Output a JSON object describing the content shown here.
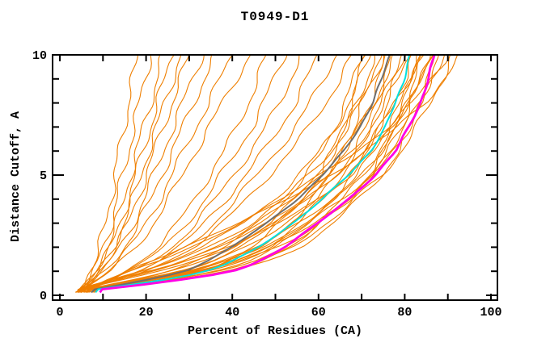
{
  "chart_data": {
    "type": "line",
    "title": "T0949-D1",
    "xlabel": "Percent of Residues (CA)",
    "ylabel": "Distance Cutoff, A",
    "xlim": [
      0,
      100
    ],
    "ylim": [
      0,
      10
    ],
    "grid": false,
    "legend": "none",
    "x_major_ticks": [
      0,
      20,
      40,
      60,
      80,
      100
    ],
    "x_minor_ticks": [
      10,
      30,
      50,
      70,
      90
    ],
    "y_major_ticks": [
      0,
      5,
      10
    ],
    "y_minor_ticks": [
      1,
      2,
      3,
      4,
      6,
      7,
      8,
      9
    ],
    "axis_color": "#000000",
    "line_groups": {
      "model": {
        "color": "#EF7F00",
        "width": 1.1
      },
      "reference": {
        "color": "#6E6E6E",
        "width": 2
      },
      "highlight-cyan": {
        "color": "#00E0E0",
        "width": 2
      },
      "highlight-magenta": {
        "color": "#FF00E6",
        "width": 2.8
      }
    },
    "cutoffs": [
      0.25,
      0.5,
      0.75,
      1,
      1.25,
      1.5,
      2,
      2.5,
      3,
      4,
      5,
      6,
      7,
      8,
      9,
      10
    ],
    "series": [
      {
        "name": "model-01",
        "group": "model",
        "percents": [
          5,
          5.9,
          6.6,
          7.2,
          7.7,
          8.3,
          9.2,
          9.9,
          10.6,
          11.8,
          12.8,
          13.8,
          14.9,
          15.9,
          17,
          18
        ]
      },
      {
        "name": "model-02",
        "group": "model",
        "percents": [
          5,
          6.1,
          6.9,
          7.7,
          8.4,
          9,
          10.1,
          11.1,
          11.9,
          13.3,
          14.6,
          15.9,
          17.2,
          18.4,
          19.7,
          21
        ]
      },
      {
        "name": "model-03",
        "group": "model",
        "percents": [
          5,
          6.3,
          7.3,
          8.2,
          9,
          9.8,
          11.1,
          12.2,
          13.2,
          14.9,
          16.4,
          17.9,
          19.4,
          21,
          22.5,
          24
        ]
      },
      {
        "name": "model-04",
        "group": "model",
        "percents": [
          5,
          6.5,
          7.5,
          8.6,
          9.4,
          10.3,
          11.7,
          13,
          14,
          15.9,
          17.6,
          19.3,
          21,
          22.6,
          24.3,
          26
        ]
      },
      {
        "name": "model-05",
        "group": "model",
        "percents": [
          5,
          6.6,
          7.8,
          8.9,
          9.8,
          10.8,
          12.4,
          13.7,
          14.9,
          17,
          18.8,
          20.6,
          22.5,
          24.3,
          26.2,
          28
        ]
      },
      {
        "name": "model-06",
        "group": "model",
        "percents": [
          5,
          6.8,
          8,
          9.3,
          10.3,
          11.3,
          13,
          14.5,
          15.8,
          18,
          20,
          22,
          24,
          26,
          28,
          30
        ]
      },
      {
        "name": "model-07",
        "group": "model",
        "percents": [
          5,
          7,
          8.4,
          9.8,
          10.9,
          12,
          14,
          15.6,
          17,
          19.6,
          21.8,
          24,
          26.3,
          28.5,
          30.8,
          33
        ]
      },
      {
        "name": "model-08",
        "group": "model",
        "percents": [
          5,
          7.2,
          8.7,
          10.3,
          11.5,
          12.8,
          14.9,
          16.8,
          18.3,
          21.1,
          23.6,
          26.1,
          28.6,
          31,
          33.5,
          36
        ]
      },
      {
        "name": "model-09",
        "group": "model",
        "percents": [
          5,
          7.5,
          9.2,
          11,
          12.4,
          13.8,
          16.2,
          18.3,
          20.1,
          23.2,
          26,
          28.8,
          31.6,
          34.4,
          37.2,
          40
        ]
      },
      {
        "name": "model-10",
        "group": "model",
        "percents": [
          5,
          7.7,
          9.7,
          11.6,
          13.2,
          14.8,
          17.5,
          19.8,
          21.8,
          25.3,
          28.4,
          31.5,
          34.6,
          37.8,
          40.9,
          44
        ]
      },
      {
        "name": "model-11",
        "group": "model",
        "percents": [
          5.4,
          9.3,
          12.3,
          14.9,
          17,
          19.2,
          22.6,
          25.2,
          27.4,
          31.2,
          34.7,
          38.1,
          41.1,
          43.7,
          45.9,
          48
        ]
      },
      {
        "name": "model-12",
        "group": "model",
        "percents": [
          5.5,
          9.7,
          13,
          15.8,
          18.2,
          20.5,
          24.3,
          27.1,
          29.4,
          33.7,
          37.4,
          41.2,
          44.5,
          47.3,
          49.7,
          52
        ]
      },
      {
        "name": "model-13",
        "group": "model",
        "percents": [
          5.5,
          10.1,
          13.7,
          16.7,
          19.3,
          21.8,
          25.9,
          29,
          31.5,
          36.1,
          40.2,
          44.3,
          47.8,
          50.9,
          53.5,
          56
        ]
      },
      {
        "name": "model-14",
        "group": "model",
        "percents": [
          5.6,
          10.5,
          14.4,
          17.7,
          20.4,
          23.2,
          27.6,
          30.9,
          33.6,
          38.6,
          43,
          47.4,
          51.2,
          54.5,
          57.3,
          60
        ]
      },
      {
        "name": "model-15",
        "group": "model",
        "percents": [
          5.6,
          10.9,
          15,
          18.6,
          21.5,
          24.5,
          29.2,
          32.7,
          35.7,
          41,
          45.7,
          50.4,
          54.6,
          58.1,
          61.1,
          64
        ]
      },
      {
        "name": "model-16",
        "group": "model",
        "percents": [
          5.6,
          11.3,
          15.7,
          19.5,
          22.6,
          25.8,
          30.8,
          34.6,
          37.8,
          43.4,
          48.5,
          53.5,
          57.9,
          61.7,
          64.9,
          68
        ]
      },
      {
        "name": "model-17",
        "group": "model",
        "percents": [
          5.6,
          12.6,
          19.6,
          25.2,
          29.4,
          32.9,
          38.5,
          42.7,
          46.2,
          52.5,
          57.4,
          60.9,
          63.7,
          66.2,
          68.3,
          70
        ]
      },
      {
        "name": "model-18",
        "group": "model",
        "percents": [
          5.8,
          13.1,
          20.4,
          26.3,
          30.7,
          34.3,
          40.2,
          44.5,
          48.2,
          54.8,
          59.9,
          63.5,
          66.4,
          69,
          71.2,
          73
        ]
      },
      {
        "name": "model-19",
        "group": "model",
        "percents": [
          6.1,
          13.7,
          21.3,
          27.4,
          31.9,
          35.7,
          41.8,
          46.4,
          50.2,
          57,
          62.3,
          66.1,
          69.2,
          71.8,
          74.1,
          76
        ]
      },
      {
        "name": "model-20",
        "group": "model",
        "percents": [
          6.3,
          14.2,
          22.1,
          28.4,
          33.2,
          37.1,
          43.5,
          48.2,
          52.1,
          59.3,
          64.8,
          68.7,
          71.9,
          74.7,
          77,
          79
        ]
      },
      {
        "name": "model-21",
        "group": "model",
        "percents": [
          6.6,
          14.8,
          23,
          29.5,
          34.4,
          38.5,
          45.1,
          50,
          54.1,
          61.5,
          67.2,
          71.3,
          74.6,
          77.5,
          80,
          82
        ]
      },
      {
        "name": "model-22",
        "group": "model",
        "percents": [
          6.7,
          15.1,
          23.5,
          30.2,
          35.3,
          39.5,
          46.2,
          51.2,
          55.4,
          63,
          68.9,
          73.1,
          76.4,
          79.4,
          81.9,
          84
        ]
      },
      {
        "name": "model-23",
        "group": "model",
        "percents": [
          6.8,
          15.4,
          23.9,
          30.8,
          35.9,
          40.2,
          47,
          52.2,
          56.4,
          64.1,
          70.1,
          74.4,
          77.8,
          80.8,
          83.4,
          85.5
        ]
      },
      {
        "name": "model-24",
        "group": "model",
        "percents": [
          7,
          15.8,
          24.5,
          31.5,
          36.8,
          41.1,
          48.1,
          53.4,
          57.8,
          65.6,
          71.8,
          76.1,
          79.6,
          82.7,
          85.3,
          87.5
        ]
      },
      {
        "name": "model-25",
        "group": "model",
        "percents": [
          7.1,
          16,
          24.9,
          32,
          37.4,
          41.8,
          49,
          54.3,
          58.7,
          66.8,
          73,
          77.4,
          81,
          84.1,
          86.8,
          89
        ]
      },
      {
        "name": "model-26",
        "group": "model",
        "percents": [
          7.3,
          16.4,
          25.5,
          32.8,
          38.2,
          42.8,
          50.1,
          55.5,
          60.1,
          68.3,
          74.6,
          79.2,
          82.8,
          86,
          88.7,
          91
        ]
      },
      {
        "name": "model-27",
        "group": "model",
        "percents": [
          7.1,
          17,
          25.6,
          32,
          36.2,
          39.8,
          44.7,
          48.3,
          51.1,
          56.1,
          60.4,
          63.2,
          65.7,
          67.5,
          69.2,
          71
        ]
      },
      {
        "name": "model-28",
        "group": "model",
        "percents": [
          7.4,
          17.8,
          26.6,
          33.3,
          37.7,
          41.4,
          46.6,
          50.3,
          53.3,
          58.5,
          62.9,
          65.9,
          68.5,
          70.3,
          72.2,
          74
        ]
      },
      {
        "name": "model-29",
        "group": "model",
        "percents": [
          7.7,
          18.5,
          27.7,
          34.7,
          39.3,
          43.1,
          48.5,
          52.4,
          55.4,
          60.8,
          65.5,
          68.5,
          71.2,
          73.2,
          75.1,
          77
        ]
      },
      {
        "name": "model-30",
        "group": "model",
        "percents": [
          8,
          19.2,
          28.8,
          36,
          40.8,
          44.8,
          50.4,
          54.4,
          57.6,
          63.2,
          68,
          71.2,
          74,
          76,
          78,
          80
        ]
      },
      {
        "name": "model-31",
        "group": "model",
        "percents": [
          8.3,
          19.9,
          29.9,
          37.4,
          42.3,
          46.5,
          52.3,
          56.4,
          59.8,
          65.6,
          70.6,
          73.9,
          76.8,
          78.9,
          80.9,
          83
        ]
      },
      {
        "name": "model-32",
        "group": "model",
        "percents": [
          8.5,
          20.3,
          30.4,
          38,
          43.1,
          47.3,
          53.2,
          57.5,
          60.8,
          66.8,
          71.8,
          75.2,
          78.2,
          80.3,
          82.4,
          84.5
        ]
      },
      {
        "name": "model-33",
        "group": "model",
        "percents": [
          8.6,
          20.6,
          31,
          38.7,
          43.9,
          48.2,
          54.2,
          58.5,
          61.9,
          67.9,
          73.1,
          76.5,
          79.6,
          81.7,
          83.9,
          86
        ]
      },
      {
        "name": "model-34",
        "group": "model",
        "percents": [
          8.8,
          21.1,
          31.7,
          39.6,
          44.9,
          49.3,
          55.4,
          59.8,
          63.4,
          69.5,
          74.8,
          78.3,
          81.4,
          83.6,
          85.8,
          88
        ]
      },
      {
        "name": "model-35",
        "group": "model",
        "percents": [
          4.3,
          8.6,
          13.7,
          18.7,
          23,
          26.6,
          33.1,
          38.2,
          42.5,
          49.7,
          55.4,
          60.5,
          64.1,
          67,
          69.8,
          72
        ]
      },
      {
        "name": "model-36",
        "group": "model",
        "percents": [
          4.5,
          9,
          14.3,
          19.5,
          24,
          27.8,
          34.5,
          39.8,
          44.3,
          51.8,
          57.8,
          63,
          66.8,
          69.8,
          72.8,
          75
        ]
      },
      {
        "name": "model-37",
        "group": "model",
        "percents": [
          4.7,
          9.4,
          14.8,
          20.3,
          25,
          28.9,
          35.9,
          41.3,
          46,
          53.8,
          60.1,
          65.5,
          69.4,
          72.5,
          75.7,
          78
        ]
      },
      {
        "name": "model-38",
        "group": "model",
        "percents": [
          4.9,
          9.7,
          15.4,
          21.1,
          25.9,
          30,
          37.3,
          42.9,
          47.8,
          55.9,
          62.4,
          68,
          72.1,
          75.3,
          78.6,
          81
        ]
      },
      {
        "name": "model-39",
        "group": "model",
        "percents": [
          5,
          10,
          15.9,
          21.7,
          26.7,
          30.9,
          38.4,
          44.3,
          49.3,
          57.6,
          64.3,
          70.1,
          74.3,
          77.7,
          81,
          83.5
        ]
      },
      {
        "name": "model-40",
        "group": "model",
        "percents": [
          5.2,
          10.4,
          16.4,
          22.5,
          27.7,
          32,
          39.8,
          45.8,
          51,
          59.7,
          66.6,
          72.7,
          77,
          80.4,
          83.9,
          86.5
        ]
      },
      {
        "name": "model-41",
        "group": "model",
        "percents": [
          6.7,
          9.7,
          12.7,
          16.1,
          19,
          22.9,
          29.2,
          35.2,
          40.7,
          51.3,
          60.7,
          68.8,
          76,
          81.9,
          86.2,
          90
        ]
      },
      {
        "name": "model-42",
        "group": "model",
        "percents": [
          6.8,
          9.8,
          12.9,
          16.4,
          19.5,
          23.5,
          30.1,
          36.2,
          42,
          53,
          62.6,
          71,
          78.5,
          84.6,
          89,
          93
        ]
      },
      {
        "name": "reference-gray",
        "group": "reference",
        "percents": [
          8,
          16,
          23,
          29,
          32,
          35,
          40,
          44,
          48,
          55,
          61,
          66,
          69.5,
          72.5,
          74.8,
          76.5
        ]
      },
      {
        "name": "highlight-cyan-model",
        "group": "highlight-cyan",
        "percents": [
          9,
          19,
          28,
          34,
          38,
          41,
          46,
          50,
          54,
          61,
          67,
          72,
          75.5,
          78,
          79.8,
          81
        ]
      },
      {
        "name": "highlight-magenta-model",
        "group": "highlight-magenta",
        "percents": [
          10,
          22,
          32,
          40,
          44,
          47,
          52,
          56,
          60,
          67,
          73,
          78,
          81,
          83.5,
          85.5,
          87
        ]
      }
    ]
  }
}
